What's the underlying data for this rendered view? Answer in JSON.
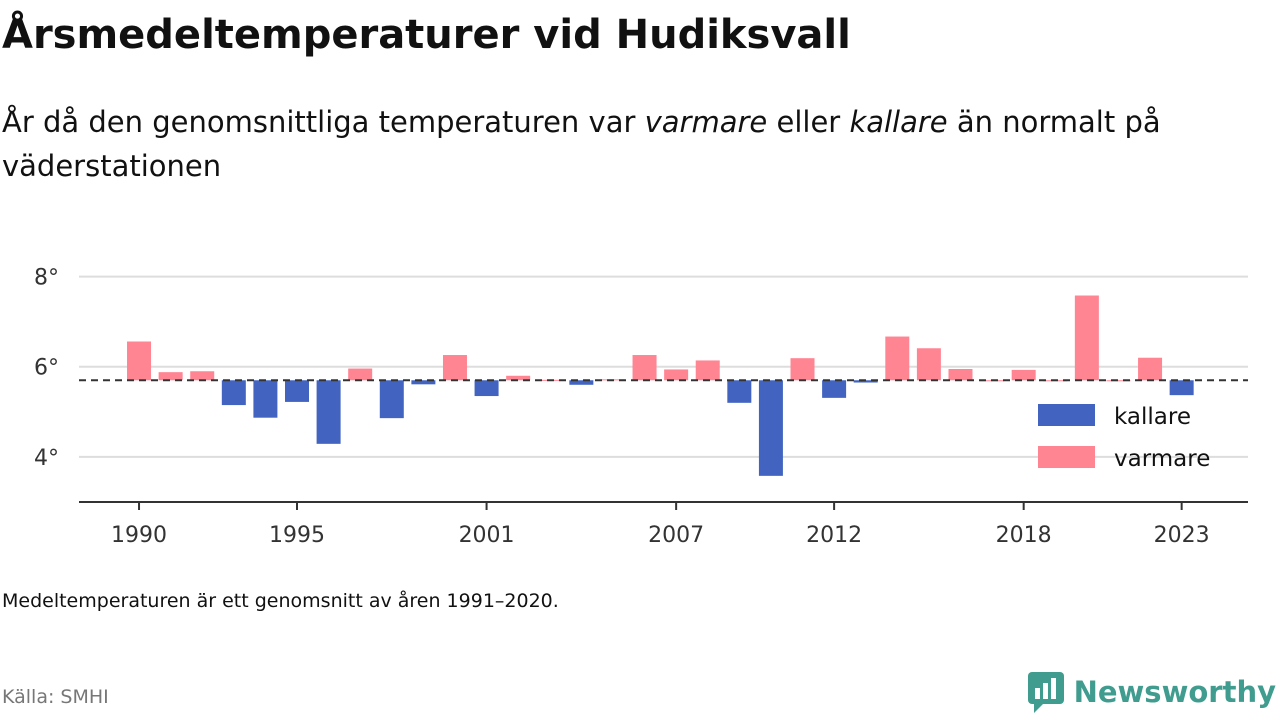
{
  "header": {
    "title": "Årsmedeltemperaturer vid Hudiksvall",
    "subtitle_pre": "År då den genomsnittliga temperaturen var ",
    "subtitle_em1": "varmare",
    "subtitle_mid": " eller ",
    "subtitle_em2": "kallare",
    "subtitle_post": " än normalt på väderstationen"
  },
  "chart_data": {
    "type": "bar",
    "baseline": 5.7,
    "ylim": [
      3.0,
      8.9
    ],
    "yticks": [
      4,
      6,
      8
    ],
    "ytick_labels": [
      "4°",
      "6°",
      "8°"
    ],
    "xticks": [
      1990,
      1995,
      2001,
      2007,
      2012,
      2018,
      2023
    ],
    "xlim": [
      1988.1,
      2025.1
    ],
    "grid": true,
    "legend_position": "bottom-right",
    "legend": [
      {
        "label": "kallare",
        "color": "#4264c0"
      },
      {
        "label": "varmare",
        "color": "#ff8593"
      }
    ],
    "colors": {
      "kallare": "#4264c0",
      "varmare": "#ff8593",
      "baseline": "#333333",
      "grid": "#dddddd",
      "axis": "#333333"
    },
    "years": [
      1990,
      1991,
      1992,
      1993,
      1994,
      1995,
      1996,
      1997,
      1998,
      1999,
      2000,
      2001,
      2002,
      2003,
      2004,
      2005,
      2006,
      2007,
      2008,
      2009,
      2010,
      2011,
      2012,
      2013,
      2014,
      2015,
      2016,
      2017,
      2018,
      2019,
      2020,
      2021,
      2022,
      2023
    ],
    "values": [
      6.56,
      5.88,
      5.9,
      5.15,
      4.87,
      5.22,
      4.29,
      5.96,
      4.86,
      5.61,
      6.26,
      5.35,
      5.8,
      5.71,
      5.6,
      5.72,
      6.26,
      5.94,
      6.14,
      5.2,
      3.58,
      6.19,
      5.31,
      5.65,
      6.67,
      6.41,
      5.95,
      5.7,
      5.93,
      5.7,
      7.58,
      5.7,
      6.2,
      5.37
    ]
  },
  "footer": {
    "note": "Medeltemperaturen är ett genomsnitt av åren 1991–2020.",
    "source": "Källa: SMHI",
    "brand": "Newsworthy",
    "brand_color": "#3f9c8f",
    "brand_icon": "newsworthy-logo-icon"
  }
}
